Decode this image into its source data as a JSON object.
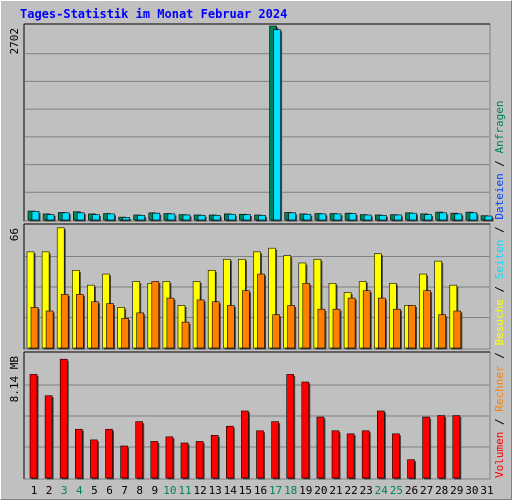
{
  "title": "Tages-Statistik im Monat Februar 2024",
  "side_label": {
    "volumen": "Volumen",
    "rechner": "Rechner",
    "besuche": "Besuche",
    "seiten": "Seiten",
    "dateien": "Dateien",
    "anfragen": "Anfragen",
    "sep": " / "
  },
  "colors": {
    "background": "#c0c0c0",
    "title": "#0000ff",
    "anfragen": "#00805c",
    "dateien": "#0040ff",
    "seiten": "#00e0ff",
    "besuche": "#ffff00",
    "rechner": "#ff8000",
    "volumen": "#ff0000",
    "weekend_label": "#00805c"
  },
  "chart_data": [
    {
      "type": "bar",
      "panel": "hits",
      "ymax_label": "2702",
      "ylim": [
        0,
        2702
      ],
      "categories": [
        "1",
        "2",
        "3",
        "4",
        "5",
        "6",
        "7",
        "8",
        "9",
        "10",
        "11",
        "12",
        "13",
        "14",
        "15",
        "16",
        "17",
        "18",
        "19",
        "20",
        "21",
        "22",
        "23",
        "24",
        "25",
        "26",
        "27",
        "28",
        "29",
        "30",
        "31"
      ],
      "weekend_days": [
        "3",
        "4",
        "10",
        "11",
        "17",
        "18",
        "24",
        "25"
      ],
      "series": [
        {
          "values": [
            125,
            85,
            105,
            115,
            85,
            90,
            40,
            70,
            100,
            90,
            75,
            70,
            70,
            85,
            80,
            70,
            2702,
            105,
            85,
            90,
            90,
            95,
            75,
            70,
            75,
            100,
            85,
            110,
            95,
            110,
            60
          ]
        },
        {
          "values": [
            120,
            75,
            100,
            100,
            75,
            85,
            35,
            65,
            95,
            85,
            70,
            65,
            65,
            80,
            75,
            65,
            2650,
            100,
            80,
            85,
            85,
            90,
            70,
            65,
            70,
            95,
            75,
            100,
            85,
            100,
            55
          ]
        }
      ]
    },
    {
      "type": "bar",
      "panel": "visits",
      "ymax_label": "66",
      "ylim": [
        0,
        66
      ],
      "categories": [
        "1",
        "2",
        "3",
        "4",
        "5",
        "6",
        "7",
        "8",
        "9",
        "10",
        "11",
        "12",
        "13",
        "14",
        "15",
        "16",
        "17",
        "18",
        "19",
        "20",
        "21",
        "22",
        "23",
        "24",
        "25",
        "26",
        "27",
        "28",
        "29",
        "30",
        "31"
      ],
      "series": [
        {
          "values": [
            52,
            52,
            65,
            42,
            34,
            40,
            22,
            36,
            35,
            36,
            23,
            36,
            42,
            48,
            48,
            52,
            54,
            50,
            46,
            48,
            35,
            30,
            36,
            51,
            35,
            23,
            40,
            47,
            34,
            0,
            0
          ]
        },
        {
          "values": [
            22,
            20,
            29,
            29,
            25,
            24,
            16,
            19,
            36,
            27,
            14,
            26,
            25,
            23,
            31,
            40,
            18,
            23,
            35,
            21,
            21,
            27,
            31,
            27,
            21,
            23,
            31,
            18,
            20,
            0,
            0
          ]
        }
      ]
    },
    {
      "type": "bar",
      "panel": "volume",
      "ymax_label": "8.14 MB",
      "ylim": [
        0,
        8.14
      ],
      "categories": [
        "1",
        "2",
        "3",
        "4",
        "5",
        "6",
        "7",
        "8",
        "9",
        "10",
        "11",
        "12",
        "13",
        "14",
        "15",
        "16",
        "17",
        "18",
        "19",
        "20",
        "21",
        "22",
        "23",
        "24",
        "25",
        "26",
        "27",
        "28",
        "29",
        "30",
        "31"
      ],
      "series": [
        {
          "values": [
            6.8,
            5.4,
            7.8,
            3.2,
            2.5,
            3.2,
            2.1,
            3.7,
            2.4,
            2.7,
            2.3,
            2.4,
            2.8,
            3.4,
            4.4,
            3.1,
            3.7,
            6.8,
            6.3,
            4.0,
            3.1,
            2.9,
            3.1,
            4.4,
            2.9,
            1.2,
            4.0,
            4.1,
            4.1,
            0,
            0
          ]
        }
      ]
    }
  ]
}
